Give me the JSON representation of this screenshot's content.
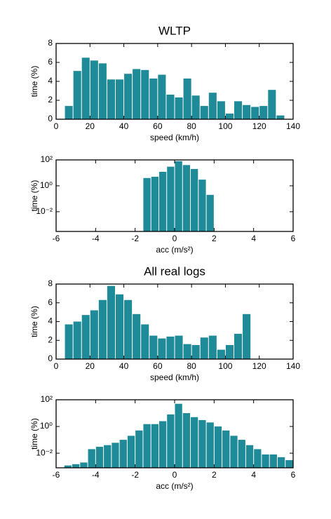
{
  "chart_data": [
    {
      "type": "histogram",
      "title": "WLTP",
      "xlabel": "speed (km/h)",
      "ylabel": "time (%)",
      "color": "#1f8a98",
      "bins": [
        5,
        10,
        15,
        20,
        25,
        30,
        35,
        40,
        45,
        50,
        55,
        60,
        65,
        70,
        75,
        80,
        85,
        90,
        95,
        100,
        105,
        110,
        115,
        120,
        125,
        130,
        135
      ],
      "values": [
        1.4,
        5.1,
        6.5,
        6.2,
        5.9,
        4.2,
        4.2,
        4.8,
        5.3,
        5.2,
        4.3,
        4.7,
        2.6,
        2.3,
        4.3,
        2.5,
        1.4,
        2.8,
        1.9,
        0.6,
        1.9,
        1.5,
        1.3,
        1.4,
        3.1,
        0.4
      ],
      "xlim": [
        0,
        140
      ],
      "xticks": [
        0,
        20,
        40,
        60,
        80,
        100,
        120,
        140
      ],
      "ylim": [
        0,
        8
      ],
      "yticks": [
        0,
        2,
        4,
        6,
        8
      ],
      "log_y": false
    },
    {
      "type": "histogram",
      "xlabel": "acc (m/s²)",
      "ylabel": "time (%)",
      "color": "#1f8a98",
      "bins": [
        -1.6,
        -1.2,
        -0.8,
        -0.4,
        0,
        0.4,
        0.8,
        1.2,
        1.6,
        2.0
      ],
      "values": [
        4,
        5,
        12,
        30,
        80,
        40,
        20,
        3,
        0.2
      ],
      "xlim": [
        -6,
        6
      ],
      "xticks": [
        -6,
        -4,
        -2,
        0,
        2,
        4,
        6
      ],
      "ylim": [
        0.0003,
        100
      ],
      "yticks": [
        {
          "value": 100,
          "label": "10²"
        },
        {
          "value": 1,
          "label": "10⁰"
        },
        {
          "value": 0.01,
          "label": "10⁻²"
        }
      ],
      "log_y": true
    },
    {
      "type": "histogram",
      "title": "All real logs",
      "xlabel": "speed (km/h)",
      "ylabel": "time (%)",
      "color": "#1f8a98",
      "bins": [
        5,
        10,
        15,
        20,
        25,
        30,
        35,
        40,
        45,
        50,
        55,
        60,
        65,
        70,
        75,
        80,
        85,
        90,
        95,
        100,
        105,
        110,
        115
      ],
      "values": [
        3.7,
        4.0,
        4.7,
        5.2,
        6.3,
        7.8,
        6.9,
        6.3,
        4.8,
        3.7,
        2.5,
        2.2,
        2.4,
        2.5,
        1.6,
        1.5,
        2.3,
        2.5,
        1.0,
        1.5,
        2.7,
        4.8
      ],
      "xlim": [
        0,
        140
      ],
      "xticks": [
        0,
        20,
        40,
        60,
        80,
        100,
        120,
        140
      ],
      "ylim": [
        0,
        8
      ],
      "yticks": [
        0,
        2,
        4,
        6,
        8
      ],
      "log_y": false
    },
    {
      "type": "histogram",
      "xlabel": "acc (m/s²)",
      "ylabel": "time (%)",
      "color": "#1f8a98",
      "bins": [
        -5.6,
        -5.2,
        -4.8,
        -4.4,
        -4.0,
        -3.6,
        -3.2,
        -2.8,
        -2.4,
        -2.0,
        -1.6,
        -1.2,
        -0.8,
        -0.4,
        0,
        0.4,
        0.8,
        1.2,
        1.6,
        2.0,
        2.4,
        2.8,
        3.2,
        3.6,
        4.0,
        4.4,
        4.8,
        5.2,
        5.6,
        6.0
      ],
      "values": [
        0.0012,
        0.0015,
        0.002,
        0.02,
        0.03,
        0.04,
        0.06,
        0.1,
        0.2,
        0.5,
        1.5,
        1.5,
        2.5,
        8,
        50,
        10,
        5,
        3,
        2,
        1,
        0.5,
        0.2,
        0.1,
        0.04,
        0.02,
        0.008,
        0.008,
        0.005,
        0.003
      ],
      "xlim": [
        -6,
        6
      ],
      "xticks": [
        -6,
        -4,
        -2,
        0,
        2,
        4,
        6
      ],
      "ylim": [
        0.0008,
        100
      ],
      "yticks": [
        {
          "value": 100,
          "label": "10²"
        },
        {
          "value": 1,
          "label": "10⁰"
        },
        {
          "value": 0.01,
          "label": "10⁻²"
        }
      ],
      "log_y": true
    }
  ]
}
